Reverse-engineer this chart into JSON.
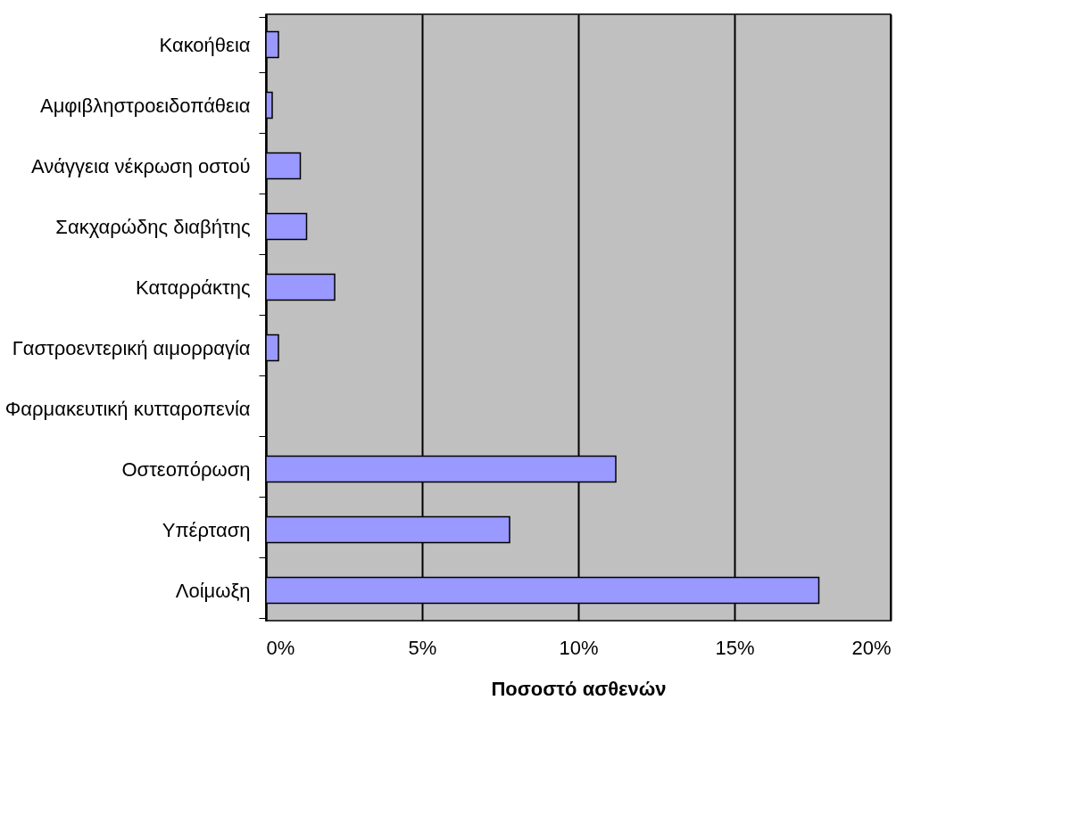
{
  "chart_data": {
    "type": "bar",
    "orientation": "horizontal",
    "xlabel": "Ποσοστό ασθενών",
    "categories": [
      "Κακοήθεια",
      "Αμφιβληστροειδοπάθεια",
      "Ανάγγεια νέκρωση οστού",
      "Σακχαρώδης διαβήτης",
      "Καταρράκτης",
      "Γαστροεντερική αιμορραγία",
      "Φαρμακευτική κυτταροπενία",
      "Οστεοπόρωση",
      "Υπέρταση",
      "Λοίμωξη"
    ],
    "values": [
      0.4,
      0.2,
      1.1,
      1.3,
      2.2,
      0.4,
      0,
      11.2,
      7.8,
      17.7
    ],
    "color": "#9999ff",
    "xlim": [
      0,
      20
    ],
    "xticks": [
      {
        "value": 0,
        "label": "0%"
      },
      {
        "value": 5,
        "label": "5%"
      },
      {
        "value": 10,
        "label": "10%"
      },
      {
        "value": 15,
        "label": "15%"
      },
      {
        "value": 20,
        "label": "20%"
      }
    ],
    "grid": "x"
  }
}
